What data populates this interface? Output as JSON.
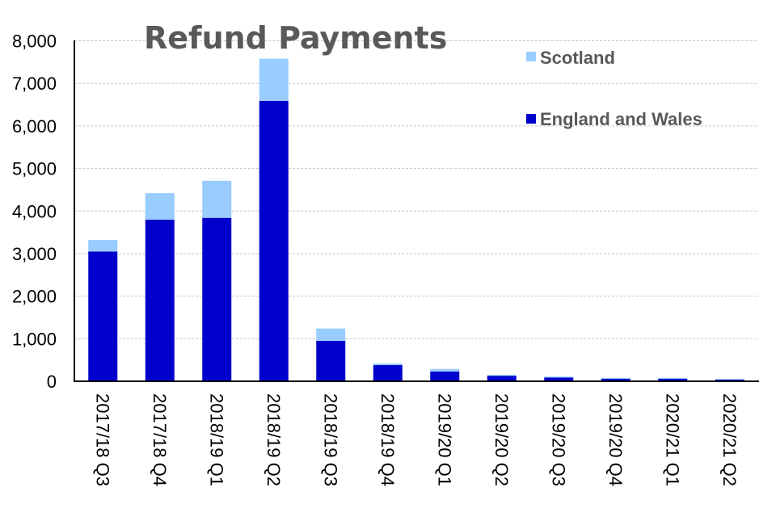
{
  "chart_data": {
    "type": "bar",
    "stacked": true,
    "title": "Refund Payments",
    "xlabel": "",
    "ylabel": "",
    "ylim": [
      0,
      8000
    ],
    "yticks": [
      "0",
      "1,000",
      "2,000",
      "3,000",
      "4,000",
      "5,000",
      "6,000",
      "7,000",
      "8,000"
    ],
    "grid": true,
    "legend_position": "top-right",
    "categories": [
      "2017/18 Q3",
      "2017/18 Q4",
      "2018/19 Q1",
      "2018/19 Q2",
      "2018/19 Q3",
      "2018/19 Q4",
      "2019/20 Q1",
      "2019/20 Q2",
      "2019/20 Q3",
      "2019/20 Q4",
      "2020/21 Q1",
      "2020/21 Q2"
    ],
    "series": [
      {
        "name": "England and Wales",
        "color": "#0000CC",
        "values": [
          3050,
          3800,
          3840,
          6590,
          950,
          380,
          230,
          130,
          90,
          60,
          60,
          40
        ]
      },
      {
        "name": "Scotland",
        "color": "#99CCFF",
        "values": [
          270,
          620,
          870,
          990,
          290,
          40,
          60,
          20,
          20,
          20,
          20,
          15
        ]
      }
    ]
  }
}
